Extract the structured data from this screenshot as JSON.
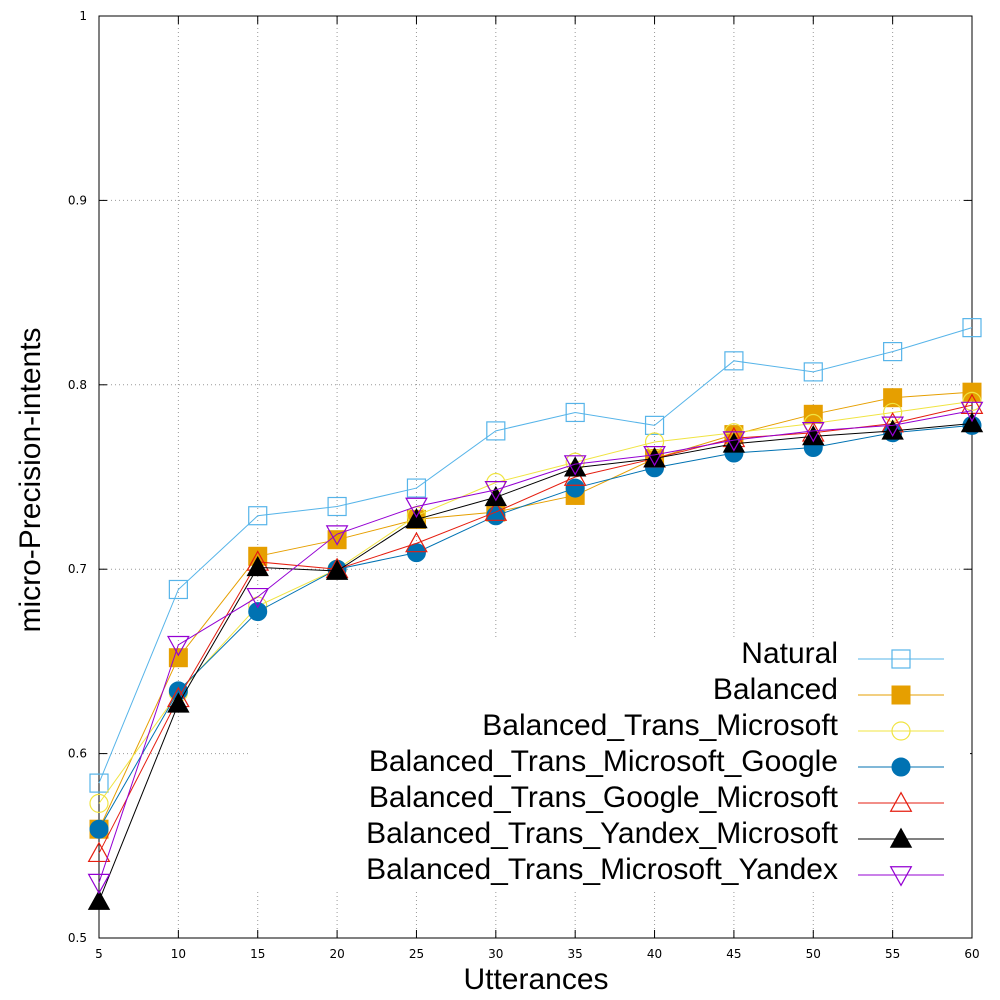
{
  "chart_data": {
    "type": "line",
    "title": "",
    "xlabel": "Utterances",
    "ylabel": "micro-Precision-intents",
    "x": [
      5,
      10,
      15,
      20,
      25,
      30,
      35,
      40,
      45,
      50,
      55,
      60
    ],
    "xlim": [
      5,
      60
    ],
    "ylim": [
      0.5,
      1.0
    ],
    "x_ticks": [
      "5",
      "10",
      "15",
      "20",
      "25",
      "30",
      "35",
      "40",
      "45",
      "50",
      "55",
      "60"
    ],
    "y_ticks": [
      {
        "value": 0.5,
        "label": "0.5"
      },
      {
        "value": 0.6,
        "label": "0.6"
      },
      {
        "value": 0.7,
        "label": "0.7"
      },
      {
        "value": 0.8,
        "label": "0.8"
      },
      {
        "value": 0.9,
        "label": "0.9"
      },
      {
        "value": 1.0,
        "label": "1"
      }
    ],
    "grid": true,
    "legend_position": "bottom-right",
    "series": [
      {
        "name": "Natural",
        "color": "#56b4e9",
        "marker": "square-open",
        "values": [
          0.584,
          0.689,
          0.729,
          0.734,
          0.744,
          0.775,
          0.785,
          0.778,
          0.813,
          0.807,
          0.818,
          0.831
        ]
      },
      {
        "name": "Balanced",
        "color": "#e69f00",
        "marker": "square-filled",
        "values": [
          0.559,
          0.652,
          0.707,
          0.716,
          0.727,
          0.731,
          0.74,
          0.76,
          0.773,
          0.784,
          0.793,
          0.796
        ]
      },
      {
        "name": "Balanced_Trans_Microsoft",
        "color": "#f0e442",
        "marker": "circle-open",
        "values": [
          0.573,
          0.633,
          0.68,
          0.7,
          0.729,
          0.747,
          0.758,
          0.769,
          0.774,
          0.779,
          0.785,
          0.791
        ]
      },
      {
        "name": "Balanced_Trans_Microsoft_Google",
        "color": "#0072b2",
        "marker": "circle-filled",
        "values": [
          0.559,
          0.634,
          0.677,
          0.7,
          0.709,
          0.729,
          0.744,
          0.755,
          0.763,
          0.766,
          0.774,
          0.778
        ]
      },
      {
        "name": "Balanced_Trans_Google_Microsoft",
        "color": "#e51e10",
        "marker": "triangle-up-open",
        "values": [
          0.546,
          0.63,
          0.704,
          0.7,
          0.714,
          0.731,
          0.75,
          0.76,
          0.771,
          0.774,
          0.779,
          0.789
        ]
      },
      {
        "name": "Balanced_Trans_Yandex_Microsoft",
        "color": "#000000",
        "marker": "triangle-up-filled",
        "values": [
          0.52,
          0.627,
          0.701,
          0.699,
          0.727,
          0.739,
          0.755,
          0.76,
          0.768,
          0.772,
          0.775,
          0.779
        ]
      },
      {
        "name": "Balanced_Trans_Microsoft_Yandex",
        "color": "#9400d3",
        "marker": "triangle-down-open",
        "values": [
          0.53,
          0.659,
          0.685,
          0.719,
          0.734,
          0.743,
          0.757,
          0.762,
          0.77,
          0.775,
          0.778,
          0.786
        ]
      }
    ]
  }
}
